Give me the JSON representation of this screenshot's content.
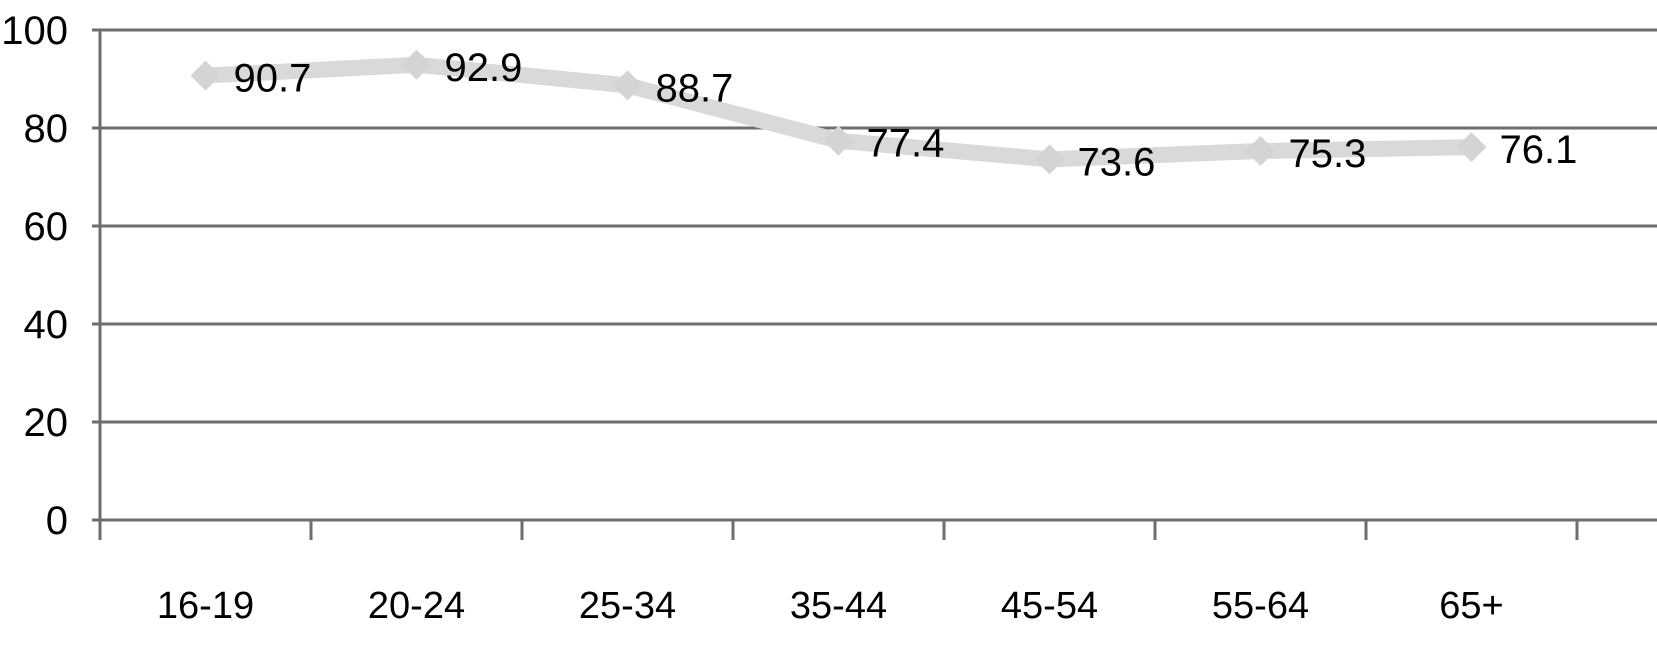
{
  "chart_data": {
    "type": "line",
    "categories": [
      "16-19",
      "20-24",
      "25-34",
      "35-44",
      "45-54",
      "55-64",
      "65+"
    ],
    "series": [
      {
        "values": [
          90.7,
          92.9,
          88.7,
          77.4,
          73.6,
          75.3,
          76.1
        ],
        "data_labels": [
          "90.7",
          "92.9",
          "88.7",
          "77.4",
          "73.6",
          "75.3",
          "76.1"
        ]
      }
    ],
    "y_ticks": [
      "0",
      "20",
      "40",
      "60",
      "80",
      "100"
    ],
    "ylim": [
      0,
      100
    ],
    "grid": true,
    "legend": "none",
    "marker": "diamond",
    "colors": {
      "series_line": "#d9d9d9",
      "series_marker": "#d4d4d4",
      "gridlines": "#6e6e6e"
    }
  }
}
